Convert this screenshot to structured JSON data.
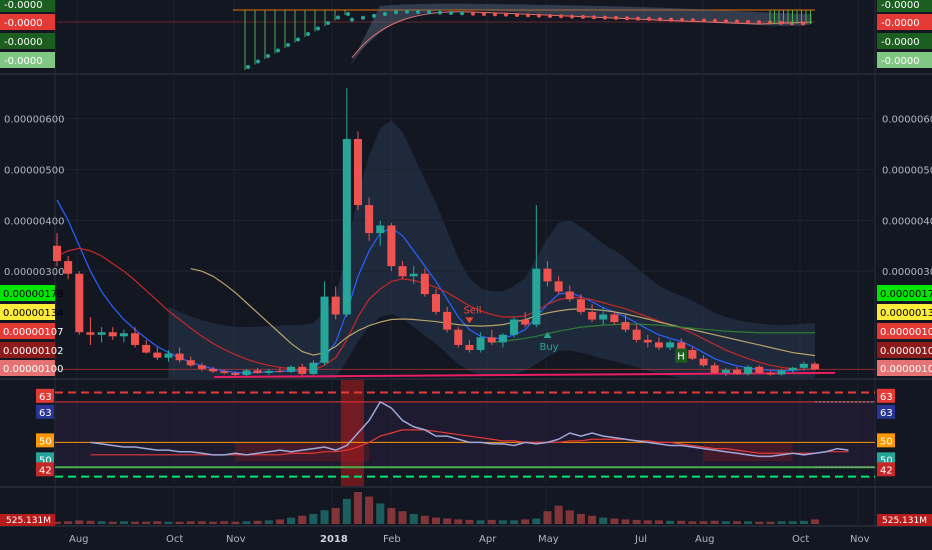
{
  "chart_data": {
    "type": "candlestick",
    "x_ticks": [
      "Aug",
      "Oct",
      "Nov",
      "2018",
      "Feb",
      "Apr",
      "May",
      "Jul",
      "Aug",
      "Oct",
      "Nov"
    ],
    "price_axis": {
      "ticks": [
        "0.00000600",
        "0.00000500",
        "0.00000400",
        "0.00000300"
      ],
      "ylim": [
        9e-07,
        6.8e-06
      ],
      "scale": "linear"
    },
    "price_badges": {
      "left": [
        {
          "label": "0.00000179",
          "color": "#00e600",
          "text_color": "#000000"
        },
        {
          "label": "0.00000134",
          "color": "#ffeb3b",
          "text_color": "#000000"
        },
        {
          "label": "0.00000107",
          "color": "#e53935",
          "text_color": "#ffffff"
        },
        {
          "label": "0.00000102",
          "color": "#8e1b1b",
          "text_color": "#ffffff"
        },
        {
          "label": "0.00000100",
          "color": "#e57373",
          "text_color": "#ffffff"
        }
      ],
      "right": [
        {
          "label": "0.00000179",
          "color": "#00e600",
          "text_color": "#000000"
        },
        {
          "label": "0.00000134",
          "color": "#ffeb3b",
          "text_color": "#000000"
        },
        {
          "label": "0.00000107",
          "color": "#e53935",
          "text_color": "#ffffff"
        },
        {
          "label": "0.00000102",
          "color": "#8e1b1b",
          "text_color": "#ffffff"
        },
        {
          "label": "0.00000100",
          "color": "#e57373",
          "text_color": "#ffffff"
        }
      ]
    },
    "candles": [
      {
        "o": 3.5e-06,
        "h": 3.75e-06,
        "l": 3.1e-06,
        "c": 3.2e-06
      },
      {
        "o": 3.2e-06,
        "h": 3.3e-06,
        "l": 2.85e-06,
        "c": 2.95e-06
      },
      {
        "o": 2.95e-06,
        "h": 3e-06,
        "l": 1.75e-06,
        "c": 1.8e-06
      },
      {
        "o": 1.8e-06,
        "h": 2.1e-06,
        "l": 1.55e-06,
        "c": 1.75e-06
      },
      {
        "o": 1.75e-06,
        "h": 1.9e-06,
        "l": 1.6e-06,
        "c": 1.8e-06
      },
      {
        "o": 1.8e-06,
        "h": 1.9e-06,
        "l": 1.65e-06,
        "c": 1.72e-06
      },
      {
        "o": 1.72e-06,
        "h": 1.85e-06,
        "l": 1.6e-06,
        "c": 1.78e-06
      },
      {
        "o": 1.78e-06,
        "h": 1.9e-06,
        "l": 1.5e-06,
        "c": 1.55e-06
      },
      {
        "o": 1.55e-06,
        "h": 1.65e-06,
        "l": 1.38e-06,
        "c": 1.4e-06
      },
      {
        "o": 1.4e-06,
        "h": 1.5e-06,
        "l": 1.25e-06,
        "c": 1.3e-06
      },
      {
        "o": 1.3e-06,
        "h": 1.45e-06,
        "l": 1.22e-06,
        "c": 1.38e-06
      },
      {
        "o": 1.38e-06,
        "h": 1.5e-06,
        "l": 1.2e-06,
        "c": 1.25e-06
      },
      {
        "o": 1.25e-06,
        "h": 1.32e-06,
        "l": 1.12e-06,
        "c": 1.15e-06
      },
      {
        "o": 1.15e-06,
        "h": 1.2e-06,
        "l": 1.04e-06,
        "c": 1.08e-06
      },
      {
        "o": 1.08e-06,
        "h": 1.12e-06,
        "l": 1e-06,
        "c": 1.03e-06
      },
      {
        "o": 1.03e-06,
        "h": 1.06e-06,
        "l": 9.7e-07,
        "c": 1e-06
      },
      {
        "o": 1e-06,
        "h": 1.03e-06,
        "l": 9.4e-07,
        "c": 9.6e-07
      },
      {
        "o": 9.6e-07,
        "h": 1.08e-06,
        "l": 9.4e-07,
        "c": 1.05e-06
      },
      {
        "o": 1.05e-06,
        "h": 1.1e-06,
        "l": 9.8e-07,
        "c": 1e-06
      },
      {
        "o": 1e-06,
        "h": 1.08e-06,
        "l": 9.6e-07,
        "c": 1.04e-06
      },
      {
        "o": 1.04e-06,
        "h": 1.1e-06,
        "l": 1e-06,
        "c": 1.02e-06
      },
      {
        "o": 1.02e-06,
        "h": 1.15e-06,
        "l": 1e-06,
        "c": 1.12e-06
      },
      {
        "o": 1.12e-06,
        "h": 1.18e-06,
        "l": 9.4e-07,
        "c": 9.8e-07
      },
      {
        "o": 9.8e-07,
        "h": 1.25e-06,
        "l": 9.6e-07,
        "c": 1.2e-06
      },
      {
        "o": 1.2e-06,
        "h": 2.8e-06,
        "l": 1.15e-06,
        "c": 2.5e-06
      },
      {
        "o": 2.5e-06,
        "h": 2.7e-06,
        "l": 2.05e-06,
        "c": 2.15e-06
      },
      {
        "o": 2.15e-06,
        "h": 6.6e-06,
        "l": 2.1e-06,
        "c": 5.6e-06
      },
      {
        "o": 5.6e-06,
        "h": 5.75e-06,
        "l": 4.2e-06,
        "c": 4.3e-06
      },
      {
        "o": 4.3e-06,
        "h": 4.45e-06,
        "l": 3.6e-06,
        "c": 3.75e-06
      },
      {
        "o": 3.75e-06,
        "h": 4e-06,
        "l": 3.5e-06,
        "c": 3.9e-06
      },
      {
        "o": 3.9e-06,
        "h": 3.95e-06,
        "l": 3e-06,
        "c": 3.1e-06
      },
      {
        "o": 3.1e-06,
        "h": 3.2e-06,
        "l": 2.85e-06,
        "c": 2.9e-06
      },
      {
        "o": 2.9e-06,
        "h": 3.1e-06,
        "l": 2.75e-06,
        "c": 2.95e-06
      },
      {
        "o": 2.95e-06,
        "h": 3.05e-06,
        "l": 2.5e-06,
        "c": 2.55e-06
      },
      {
        "o": 2.55e-06,
        "h": 2.65e-06,
        "l": 2.15e-06,
        "c": 2.2e-06
      },
      {
        "o": 2.2e-06,
        "h": 2.3e-06,
        "l": 1.8e-06,
        "c": 1.85e-06
      },
      {
        "o": 1.85e-06,
        "h": 1.9e-06,
        "l": 1.5e-06,
        "c": 1.55e-06
      },
      {
        "o": 1.55e-06,
        "h": 1.65e-06,
        "l": 1.4e-06,
        "c": 1.45e-06
      },
      {
        "o": 1.45e-06,
        "h": 1.8e-06,
        "l": 1.4e-06,
        "c": 1.7e-06
      },
      {
        "o": 1.7e-06,
        "h": 1.85e-06,
        "l": 1.55e-06,
        "c": 1.6e-06
      },
      {
        "o": 1.6e-06,
        "h": 1.78e-06,
        "l": 1.5e-06,
        "c": 1.75e-06
      },
      {
        "o": 1.75e-06,
        "h": 2.1e-06,
        "l": 1.7e-06,
        "c": 2.05e-06
      },
      {
        "o": 2.05e-06,
        "h": 2.2e-06,
        "l": 1.9e-06,
        "c": 1.95e-06
      },
      {
        "o": 1.95e-06,
        "h": 4.3e-06,
        "l": 1.9e-06,
        "c": 3.05e-06
      },
      {
        "o": 3.05e-06,
        "h": 3.2e-06,
        "l": 2.7e-06,
        "c": 2.8e-06
      },
      {
        "o": 2.8e-06,
        "h": 2.9e-06,
        "l": 2.55e-06,
        "c": 2.6e-06
      },
      {
        "o": 2.6e-06,
        "h": 2.72e-06,
        "l": 2.4e-06,
        "c": 2.45e-06
      },
      {
        "o": 2.45e-06,
        "h": 2.55e-06,
        "l": 2.15e-06,
        "c": 2.2e-06
      },
      {
        "o": 2.2e-06,
        "h": 2.35e-06,
        "l": 2e-06,
        "c": 2.05e-06
      },
      {
        "o": 2.05e-06,
        "h": 2.3e-06,
        "l": 1.95e-06,
        "c": 2.15e-06
      },
      {
        "o": 2.15e-06,
        "h": 2.22e-06,
        "l": 1.95e-06,
        "c": 2e-06
      },
      {
        "o": 2e-06,
        "h": 2.15e-06,
        "l": 1.8e-06,
        "c": 1.85e-06
      },
      {
        "o": 1.85e-06,
        "h": 1.95e-06,
        "l": 1.6e-06,
        "c": 1.65e-06
      },
      {
        "o": 1.65e-06,
        "h": 1.75e-06,
        "l": 1.5e-06,
        "c": 1.6e-06
      },
      {
        "o": 1.6e-06,
        "h": 1.7e-06,
        "l": 1.45e-06,
        "c": 1.5e-06
      },
      {
        "o": 1.5e-06,
        "h": 1.65e-06,
        "l": 1.45e-06,
        "c": 1.6e-06
      },
      {
        "o": 1.6e-06,
        "h": 1.68e-06,
        "l": 1.4e-06,
        "c": 1.45e-06
      },
      {
        "o": 1.45e-06,
        "h": 1.5e-06,
        "l": 1.25e-06,
        "c": 1.28e-06
      },
      {
        "o": 1.28e-06,
        "h": 1.35e-06,
        "l": 1.12e-06,
        "c": 1.15e-06
      },
      {
        "o": 1.15e-06,
        "h": 1.2e-06,
        "l": 9.8e-07,
        "c": 1e-06
      },
      {
        "o": 1e-06,
        "h": 1.1e-06,
        "l": 9.4e-07,
        "c": 1.06e-06
      },
      {
        "o": 1.06e-06,
        "h": 1.12e-06,
        "l": 9.6e-07,
        "c": 9.8e-07
      },
      {
        "o": 9.8e-07,
        "h": 1.15e-06,
        "l": 9.5e-07,
        "c": 1.12e-06
      },
      {
        "o": 1.12e-06,
        "h": 1.15e-06,
        "l": 9.8e-07,
        "c": 1e-06
      },
      {
        "o": 1e-06,
        "h": 1.04e-06,
        "l": 9.5e-07,
        "c": 9.7e-07
      },
      {
        "o": 9.7e-07,
        "h": 1.08e-06,
        "l": 9.5e-07,
        "c": 1.05e-06
      },
      {
        "o": 1.05e-06,
        "h": 1.12e-06,
        "l": 1e-06,
        "c": 1.1e-06
      },
      {
        "o": 1.1e-06,
        "h": 1.22e-06,
        "l": 1.05e-06,
        "c": 1.18e-06
      },
      {
        "o": 1.18e-06,
        "h": 1.22e-06,
        "l": 1.05e-06,
        "c": 1.07e-06
      }
    ],
    "series": [
      {
        "color": "#2962ff",
        "values": [
          4.4e-06,
          4e-06,
          3.5e-06,
          3e-06,
          2.6e-06,
          2.3e-06,
          2.05e-06,
          1.85e-06,
          1.68e-06,
          1.52e-06,
          1.4e-06,
          1.3e-06,
          1.21e-06,
          1.14e-06,
          1.08e-06,
          1.04e-06,
          1.01e-06,
          1e-06,
          1.01e-06,
          1.02e-06,
          1.03e-06,
          1.04e-06,
          1.04e-06,
          1.08e-06,
          1.3e-06,
          1.6e-06,
          2.2e-06,
          2.9e-06,
          3.4e-06,
          3.75e-06,
          3.85e-06,
          3.7e-06,
          3.4e-06,
          3.1e-06,
          2.8e-06,
          2.45e-06,
          2.1e-06,
          1.85e-06,
          1.72e-06,
          1.68e-06,
          1.68e-06,
          1.75e-06,
          1.85e-06,
          2.1e-06,
          2.35e-06,
          2.55e-06,
          2.58e-06,
          2.5e-06,
          2.4e-06,
          2.28e-06,
          2.2e-06,
          2.1e-06,
          1.98e-06,
          1.86e-06,
          1.75e-06,
          1.68e-06,
          1.62e-06,
          1.52e-06,
          1.4e-06,
          1.28e-06,
          1.2e-06,
          1.14e-06,
          1.1e-06,
          1.07e-06,
          1.05e-06,
          1.04e-06,
          1.05e-06,
          1.07e-06,
          1.08e-06
        ]
      },
      {
        "color": "#c62828",
        "values": [
          3.3e-06,
          3.4e-06,
          3.45e-06,
          3.4e-06,
          3.3e-06,
          3.15e-06,
          3e-06,
          2.82e-06,
          2.62e-06,
          2.42e-06,
          2.22e-06,
          2.05e-06,
          1.88e-06,
          1.72e-06,
          1.58e-06,
          1.46e-06,
          1.36e-06,
          1.27e-06,
          1.2e-06,
          1.15e-06,
          1.11e-06,
          1.08e-06,
          1.06e-06,
          1.06e-06,
          1.15e-06,
          1.3e-06,
          1.65e-06,
          2.1e-06,
          2.45e-06,
          2.65e-06,
          2.8e-06,
          2.85e-06,
          2.82e-06,
          2.76e-06,
          2.68e-06,
          2.58e-06,
          2.45e-06,
          2.32e-06,
          2.22e-06,
          2.15e-06,
          2.1e-06,
          2.1e-06,
          2.12e-06,
          2.22e-06,
          2.35e-06,
          2.44e-06,
          2.48e-06,
          2.48e-06,
          2.44e-06,
          2.38e-06,
          2.32e-06,
          2.26e-06,
          2.18e-06,
          2.1e-06,
          2.02e-06,
          1.95e-06,
          1.88e-06,
          1.78e-06,
          1.67e-06,
          1.56e-06,
          1.45e-06,
          1.36e-06,
          1.28e-06,
          1.21e-06,
          1.15e-06,
          1.11e-06,
          1.08e-06,
          1.07e-06,
          1.07e-06
        ]
      },
      {
        "color": "#b8a369",
        "values": [
          null,
          null,
          null,
          null,
          null,
          null,
          null,
          null,
          null,
          null,
          null,
          null,
          3.05e-06,
          3e-06,
          2.9e-06,
          2.75e-06,
          2.58e-06,
          2.38e-06,
          2.18e-06,
          1.98e-06,
          1.78e-06,
          1.58e-06,
          1.42e-06,
          1.35e-06,
          1.4e-06,
          1.52e-06,
          1.7e-06,
          1.83e-06,
          1.93e-06,
          2e-06,
          2.05e-06,
          2.06e-06,
          2.05e-06,
          2.03e-06,
          2.01e-06,
          1.98e-06,
          1.95e-06,
          1.93e-06,
          1.92e-06,
          1.93e-06,
          1.95e-06,
          2e-06,
          2.05e-06,
          2.12e-06,
          2.18e-06,
          2.22e-06,
          2.25e-06,
          2.26e-06,
          2.25e-06,
          2.23e-06,
          2.2e-06,
          2.16e-06,
          2.11e-06,
          2.06e-06,
          2e-06,
          1.95e-06,
          1.9e-06,
          1.85e-06,
          1.8e-06,
          1.75e-06,
          1.7e-06,
          1.65e-06,
          1.6e-06,
          1.55e-06,
          1.5e-06,
          1.45e-06,
          1.4e-06,
          1.37e-06,
          1.34e-06
        ]
      },
      {
        "color": "#2e7d32",
        "values": [
          null,
          null,
          null,
          null,
          null,
          null,
          null,
          null,
          null,
          null,
          null,
          null,
          null,
          null,
          null,
          null,
          null,
          null,
          null,
          null,
          null,
          null,
          null,
          null,
          null,
          null,
          null,
          null,
          null,
          null,
          null,
          null,
          null,
          null,
          null,
          null,
          null,
          null,
          null,
          1.6e-06,
          1.62e-06,
          1.65e-06,
          1.68e-06,
          1.72e-06,
          1.77e-06,
          1.82e-06,
          1.86e-06,
          1.9e-06,
          1.92e-06,
          1.94e-06,
          1.95e-06,
          1.96e-06,
          1.96e-06,
          1.95e-06,
          1.94e-06,
          1.92e-06,
          1.9e-06,
          1.88e-06,
          1.86e-06,
          1.84e-06,
          1.82e-06,
          1.81e-06,
          1.8e-06,
          1.79e-06,
          1.79e-06,
          1.79e-06,
          1.79e-06,
          1.79e-06,
          1.79e-06
        ]
      }
    ],
    "support_line": [
      {
        "x_index": 15,
        "y": 9.2e-07
      },
      {
        "x_index": 68,
        "y": 1e-06
      }
    ],
    "annotations": [
      {
        "text": "Sell",
        "x_index": 37,
        "y": 2.25e-06,
        "color": "#f44336"
      },
      {
        "text": "Buy",
        "x_index": 44,
        "y": 1.45e-06,
        "color": "#26a69a"
      },
      {
        "text": "H",
        "x_index": 56,
        "y": 1.32e-06,
        "color": "#1b5e20"
      }
    ],
    "oscillator": {
      "levels": [
        {
          "label": "63",
          "color": "#e53935"
        },
        {
          "label": "63",
          "color": "#283593"
        },
        {
          "label": "50",
          "color": "#ff9800"
        },
        {
          "label": "50",
          "color": "#26a69a"
        },
        {
          "label": "42",
          "color": "#c62828"
        }
      ],
      "ylim": [
        36,
        70
      ],
      "lines": {
        "guide_high": 66,
        "upper": 63,
        "mid": 50,
        "lower": 42,
        "guide_low": 39
      },
      "rsi": [
        50,
        49.5,
        49,
        48.5,
        48.5,
        48,
        47.5,
        47.5,
        47,
        47,
        46.5,
        46,
        46,
        46.5,
        46,
        46.5,
        47,
        47.5,
        47,
        47.5,
        48,
        48.5,
        47.5,
        49,
        53,
        57,
        63,
        61,
        57,
        55,
        54,
        52,
        52,
        51,
        50,
        50,
        49.5,
        49.5,
        49,
        50,
        49.5,
        50,
        51,
        53,
        52,
        53,
        52,
        51.5,
        51,
        50.5,
        50,
        49.5,
        49,
        49,
        48.5,
        48,
        47.5,
        47,
        46.5,
        46,
        45.5,
        45.5,
        46,
        46.5,
        46,
        46.5,
        47,
        48,
        47.5
      ],
      "signal": [
        46,
        46,
        46,
        46,
        46,
        46,
        46,
        46,
        46,
        46,
        46,
        46,
        46,
        46,
        46,
        46,
        46,
        46,
        46.5,
        46.5,
        46.5,
        47,
        47,
        47.5,
        48.5,
        50,
        52,
        53,
        54,
        54,
        54,
        53.5,
        53,
        52.5,
        52,
        51.5,
        51,
        50.5,
        50.5,
        50,
        50,
        50,
        50,
        50.5,
        50.5,
        51,
        51,
        51,
        51,
        50.5,
        50.5,
        50,
        50,
        49.5,
        49,
        48.5,
        48,
        48,
        47.5,
        47,
        46.5,
        46.5,
        46.5,
        46.5,
        46.5,
        46.5,
        47,
        47,
        47
      ]
    },
    "volume": {
      "label": "525.131M",
      "values": [
        5,
        6,
        8,
        7,
        6,
        5,
        6,
        5,
        5,
        6,
        5,
        5,
        6,
        6,
        5,
        6,
        5,
        6,
        7,
        8,
        10,
        14,
        18,
        22,
        30,
        35,
        55,
        70,
        60,
        45,
        35,
        28,
        22,
        18,
        14,
        12,
        10,
        9,
        8,
        9,
        8,
        8,
        10,
        12,
        28,
        40,
        30,
        22,
        18,
        14,
        12,
        10,
        9,
        8,
        8,
        7,
        7,
        6,
        6,
        7,
        6,
        6,
        6,
        5,
        5,
        6,
        6,
        7,
        10
      ]
    },
    "top_panel": {
      "left_labels": [
        {
          "label": "-0.0000",
          "color": "#1b5e20"
        },
        {
          "label": "-0.0000",
          "color": "#e53935"
        },
        {
          "label": "-0.0000",
          "color": "#1b5e20"
        },
        {
          "label": "-0.0000",
          "color": "#81c784"
        }
      ],
      "right_labels": [
        {
          "label": "-0.0000",
          "color": "#1b5e20"
        },
        {
          "label": "-0.0000",
          "color": "#e53935"
        },
        {
          "label": "-0.0000",
          "color": "#1b5e20"
        },
        {
          "label": "-0.0000",
          "color": "#81c784"
        }
      ]
    }
  }
}
